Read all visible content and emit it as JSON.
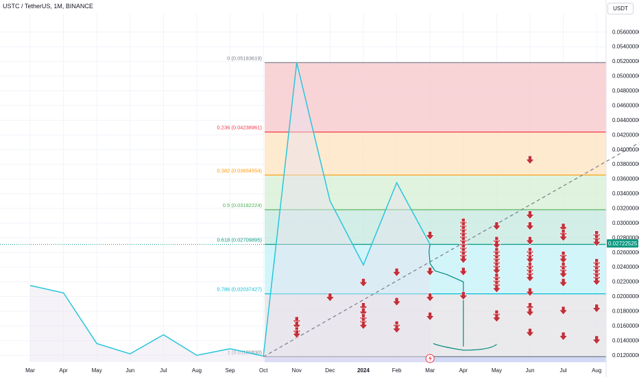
{
  "header": {
    "symbol_title": "USTC / TetherUS, 1M, BINANCE",
    "currency_button": "USDT"
  },
  "colors": {
    "price_line": "#26c6da",
    "arrow": "#c2303a",
    "trend_line": "#787b86",
    "fib_lines": [
      "#787b86",
      "#f23645",
      "#ff9800",
      "#4caf50",
      "#089981",
      "#00bcd4",
      "#787b86"
    ],
    "fib_fills": [
      "#f7c6c9",
      "#fde3bf",
      "#d6efd3",
      "#c3e8df",
      "#c3f1f8",
      "#e3e3e6"
    ],
    "price_tag": "#089981"
  },
  "chart_data": {
    "type": "line",
    "title": "",
    "x_labels": [
      "Mar",
      "Apr",
      "May",
      "Jun",
      "Jul",
      "Aug",
      "Sep",
      "Oct",
      "Nov",
      "Dec",
      "2024",
      "Feb",
      "Mar",
      "Apr",
      "May",
      "Jun",
      "Jul",
      "Aug"
    ],
    "y_ticks": [
      "0.01200000",
      "0.01400000",
      "0.01600000",
      "0.01800000",
      "0.02000000",
      "0.02200000",
      "0.02400000",
      "0.02600000",
      "0.02800000",
      "0.03000000",
      "0.03200000",
      "0.03400000",
      "0.03600000",
      "0.03800000",
      "0.04000000",
      "0.04200000",
      "0.04400000",
      "0.04600000",
      "0.04800000",
      "0.05000000",
      "0.05200000",
      "0.05400000",
      "0.05600000"
    ],
    "ylim": [
      0.0111,
      0.0585
    ],
    "current_price_label": "0.02722525",
    "current_price": 0.02722525,
    "series": [
      {
        "x": [
          0,
          1,
          2,
          3,
          4,
          5,
          6,
          7,
          8,
          9,
          10,
          11,
          12
        ],
        "y": [
          0.0215,
          0.0205,
          0.0136,
          0.0122,
          0.0148,
          0.012,
          0.0129,
          0.0119,
          0.05183619,
          0.033,
          0.0243,
          0.0355,
          0.0271
        ]
      }
    ],
    "fib_levels": [
      {
        "ratio": "0",
        "price": 0.05183619,
        "label": "0 (0.05183619)"
      },
      {
        "ratio": "0.236",
        "price": 0.04238961,
        "label": "0.236 (0.04238961)"
      },
      {
        "ratio": "0.382",
        "price": 0.03654554,
        "label": "0.382 (0.03654554)"
      },
      {
        "ratio": "0.5",
        "price": 0.03182224,
        "label": "0.5 (0.03182224)"
      },
      {
        "ratio": "0.618",
        "price": 0.02709895,
        "label": "0.618 (0.02709895)"
      },
      {
        "ratio": "0.786",
        "price": 0.02037427,
        "label": "0.786 (0.02037427)"
      },
      {
        "ratio": "1",
        "price": 0.0118083,
        "label": "1 (0.01180830)"
      }
    ],
    "trend_line": {
      "x": [
        7,
        18.3
      ],
      "y": [
        0.0118,
        0.041
      ]
    },
    "projection_curve": {
      "x": [
        12,
        11.97,
        12.0,
        12.15,
        12.5,
        13.0,
        13.0,
        13.0
      ],
      "y": [
        0.0271,
        0.0262,
        0.0245,
        0.0235,
        0.023,
        0.022,
        0.017,
        0.0132
      ]
    },
    "brace": {
      "x": [
        12.1,
        13.0,
        14.0
      ],
      "y": [
        0.0132,
        0.0127,
        0.0135
      ]
    },
    "arrows": [
      {
        "x": 8.0,
        "y": [
          0.0166,
          0.016,
          0.0152,
          0.0148
        ]
      },
      {
        "x": 9.0,
        "y": [
          0.0198
        ]
      },
      {
        "x": 10.0,
        "y": [
          0.0218,
          0.0185,
          0.0178,
          0.017,
          0.0165,
          0.016
        ]
      },
      {
        "x": 11.0,
        "y": [
          0.0232,
          0.0192,
          0.016,
          0.0155
        ]
      },
      {
        "x": 12.0,
        "y": [
          0.0282,
          0.0233,
          0.0198,
          0.0172
        ]
      },
      {
        "x": 13.0,
        "y": [
          0.03,
          0.0295,
          0.029,
          0.0285,
          0.028,
          0.0275,
          0.027,
          0.0265,
          0.026,
          0.0255,
          0.025,
          0.0233,
          0.02
        ]
      },
      {
        "x": 14.0,
        "y": [
          0.0295,
          0.0275,
          0.027,
          0.026,
          0.0255,
          0.025,
          0.0245,
          0.024,
          0.0235,
          0.0225,
          0.022,
          0.0215,
          0.021,
          0.0175,
          0.017
        ]
      },
      {
        "x": 15.0,
        "y": [
          0.0385,
          0.031,
          0.0295,
          0.0275,
          0.026,
          0.0255,
          0.025,
          0.024,
          0.0235,
          0.023,
          0.0225,
          0.0205,
          0.0185,
          0.0178,
          0.015
        ]
      },
      {
        "x": 16.0,
        "y": [
          0.0293,
          0.0285,
          0.028,
          0.0255,
          0.025,
          0.024,
          0.0235,
          0.023,
          0.0218,
          0.018,
          0.0145
        ]
      },
      {
        "x": 17.0,
        "y": [
          0.0283,
          0.0278,
          0.0273,
          0.0245,
          0.024,
          0.0235,
          0.023,
          0.0225,
          0.022,
          0.0183,
          0.014
        ]
      }
    ]
  }
}
